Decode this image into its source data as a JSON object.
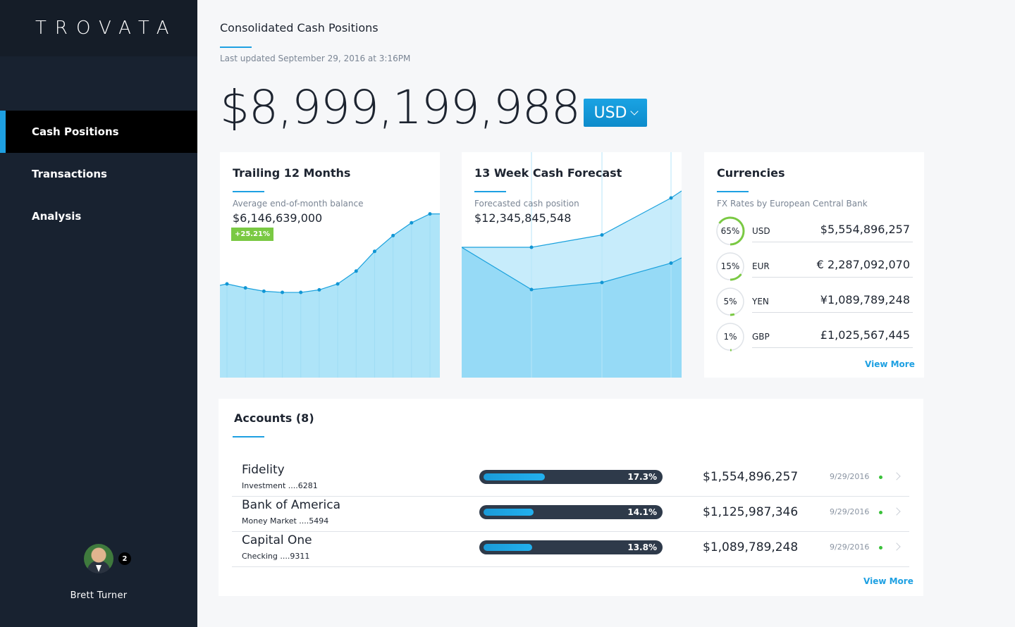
{
  "app": {
    "logo": "TROVATA"
  },
  "sidebar": {
    "items": [
      {
        "label": "Cash Positions",
        "active": true
      },
      {
        "label": "Transactions",
        "active": false
      },
      {
        "label": "Analysis",
        "active": false
      }
    ],
    "user": {
      "name": "Brett Turner",
      "notifications": "2"
    }
  },
  "header": {
    "title": "Consolidated Cash Positions",
    "last_updated": "Last updated September 29, 2016 at 3:16PM",
    "total": "$8,999,199,988",
    "currency": "USD"
  },
  "trailing": {
    "title": "Trailing 12 Months",
    "subtitle": "Average end-of-month balance",
    "value": "$6,146,639,000",
    "change": "+25.21%",
    "color": "#aee4f8",
    "chart_data": {
      "type": "area",
      "title": "Trailing 12 Months",
      "x": [
        1,
        2,
        3,
        4,
        5,
        6,
        7,
        8,
        9,
        10,
        11,
        12
      ],
      "values": [
        4.75,
        4.55,
        4.38,
        4.32,
        4.32,
        4.45,
        4.75,
        5.4,
        6.4,
        7.2,
        7.85,
        8.3
      ],
      "ylim": [
        0,
        10
      ]
    }
  },
  "forecast": {
    "title": "13 Week Cash Forecast",
    "subtitle": "Forecasted cash position",
    "value": "$12,345,845,548",
    "chart_data": {
      "type": "area",
      "title": "13 Week Cash Forecast",
      "x": [
        0,
        1,
        2,
        3,
        4
      ],
      "series": [
        {
          "name": "upper",
          "values": [
            7.4,
            7.4,
            8.1,
            10.2,
            10.6
          ],
          "color": "#c7ecfb"
        },
        {
          "name": "lower",
          "values": [
            7.4,
            5.0,
            5.4,
            6.5,
            6.8
          ],
          "color": "#96daf6"
        }
      ],
      "ylim": [
        0,
        12
      ]
    }
  },
  "currencies": {
    "title": "Currencies",
    "subtitle": "FX Rates by European Central Bank",
    "rows": [
      {
        "pct_label": "65%",
        "pct": 65,
        "code": "USD",
        "amount": "$5,554,896,257"
      },
      {
        "pct_label": "15%",
        "pct": 15,
        "code": "EUR",
        "amount": "€ 2,287,092,070"
      },
      {
        "pct_label": "5%",
        "pct": 5,
        "code": "YEN",
        "amount": "¥1,089,789,248"
      },
      {
        "pct_label": "1%",
        "pct": 1,
        "code": "GBP",
        "amount": "£1,025,567,445"
      }
    ],
    "view_more": "View More"
  },
  "accounts": {
    "title": "Accounts (8)",
    "rows": [
      {
        "name": "Fidelity",
        "detail": "Investment ....6281",
        "pct_label": "17.3%",
        "pct": 17.3,
        "amount": "$1,554,896,257",
        "date": "9/29/2016"
      },
      {
        "name": "Bank of America",
        "detail": "Money Market ....5494",
        "pct_label": "14.1%",
        "pct": 14.1,
        "amount": "$1,125,987,346",
        "date": "9/29/2016"
      },
      {
        "name": "Capital One",
        "detail": "Checking ....9311",
        "pct_label": "13.8%",
        "pct": 13.8,
        "amount": "$1,089,789,248",
        "date": "9/29/2016"
      }
    ],
    "view_more": "View More"
  },
  "colors": {
    "accent": "#1ea0e2",
    "positive": "#7ac943",
    "sidebar": "#182230"
  }
}
